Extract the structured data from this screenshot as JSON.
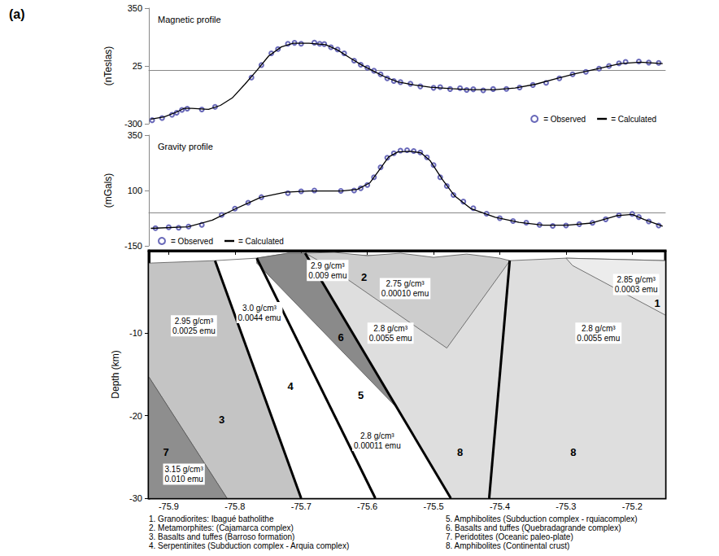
{
  "panel_label": "(a)",
  "chart_data": [
    {
      "type": "line",
      "title": "Magnetic profile",
      "y_label": "(nTeslas)",
      "xlim": [
        -75.93,
        -75.15
      ],
      "ylim": [
        -300,
        350
      ],
      "yticks": [
        -300,
        25,
        350
      ],
      "tick_labels": "y",
      "grid": false,
      "legend": "bottom-right",
      "series": [
        {
          "name": "= Observed",
          "type": "scatter",
          "marker": "emptyCircle",
          "color": "#4444a8",
          "x": [
            -75.925,
            -75.91,
            -75.895,
            -75.888,
            -75.88,
            -75.872,
            -75.85,
            -75.83,
            -75.775,
            -75.76,
            -75.745,
            -75.735,
            -75.72,
            -75.71,
            -75.7,
            -75.68,
            -75.672,
            -75.665,
            -75.655,
            -75.645,
            -75.635,
            -75.62,
            -75.61,
            -75.6,
            -75.59,
            -75.58,
            -75.57,
            -75.56,
            -75.55,
            -75.535,
            -75.52,
            -75.5,
            -75.49,
            -75.475,
            -75.46,
            -75.45,
            -75.44,
            -75.425,
            -75.41,
            -75.39,
            -75.37,
            -75.35,
            -75.33,
            -75.31,
            -75.29,
            -75.27,
            -75.25,
            -75.235,
            -75.22,
            -75.21,
            -75.19,
            -75.175,
            -75.16
          ],
          "values": [
            -280,
            -268,
            -250,
            -238,
            -222,
            -215,
            -220,
            -205,
            -40,
            30,
            96,
            120,
            150,
            155,
            150,
            156,
            150,
            148,
            130,
            118,
            96,
            55,
            32,
            15,
            -2,
            -22,
            -45,
            -60,
            -66,
            -75,
            -90,
            -98,
            -94,
            -105,
            -100,
            -110,
            -106,
            -112,
            -105,
            -104,
            -96,
            -82,
            -70,
            -45,
            -22,
            -8,
            10,
            25,
            40,
            48,
            50,
            44,
            42
          ]
        },
        {
          "name": "= Calculated",
          "type": "line",
          "line_style": "solid",
          "color": "#000000",
          "x": [
            -75.927,
            -75.907,
            -75.889,
            -75.877,
            -75.865,
            -75.84,
            -75.822,
            -75.804,
            -75.785,
            -75.767,
            -75.749,
            -75.73,
            -75.712,
            -75.688,
            -75.663,
            -75.645,
            -75.627,
            -75.608,
            -75.59,
            -75.572,
            -75.554,
            -75.529,
            -75.505,
            -75.474,
            -75.444,
            -75.407,
            -75.377,
            -75.346,
            -75.316,
            -75.285,
            -75.249,
            -75.218,
            -75.188,
            -75.154
          ],
          "values": [
            -274,
            -262,
            -236,
            -214,
            -214,
            -219,
            -197,
            -155,
            -78,
            -1,
            81,
            132,
            153,
            153,
            145,
            115,
            72,
            29,
            -5,
            -39,
            -65,
            -82,
            -95,
            -103,
            -108,
            -108,
            -99,
            -78,
            -48,
            -18,
            12,
            38,
            46,
            38
          ]
        }
      ]
    },
    {
      "type": "line",
      "title": "Gravity profile",
      "y_label": "(mGals)",
      "xlim": [
        -75.93,
        -75.15
      ],
      "ylim": [
        -150,
        350
      ],
      "yticks": [
        -150,
        100,
        350
      ],
      "tick_labels": "y",
      "grid": false,
      "legend": "bottom-left",
      "series": [
        {
          "name": "= Observed",
          "type": "scatter",
          "marker": "emptyCircle",
          "color": "#4444a8",
          "x": [
            -75.92,
            -75.9,
            -75.885,
            -75.87,
            -75.85,
            -75.82,
            -75.8,
            -75.78,
            -75.76,
            -75.72,
            -75.7,
            -75.68,
            -75.64,
            -75.62,
            -75.61,
            -75.6,
            -75.59,
            -75.58,
            -75.57,
            -75.56,
            -75.55,
            -75.54,
            -75.53,
            -75.52,
            -75.51,
            -75.5,
            -75.49,
            -75.48,
            -75.47,
            -75.455,
            -75.44,
            -75.42,
            -75.4,
            -75.38,
            -75.36,
            -75.34,
            -75.32,
            -75.3,
            -75.28,
            -75.26,
            -75.24,
            -75.22,
            -75.2,
            -75.19,
            -75.175,
            -75.16
          ],
          "values": [
            -70,
            -66,
            -68,
            -63,
            -55,
            -10,
            18,
            45,
            70,
            88,
            96,
            100,
            98,
            100,
            110,
            125,
            160,
            205,
            248,
            268,
            280,
            282,
            278,
            272,
            250,
            215,
            160,
            120,
            80,
            50,
            20,
            -5,
            -25,
            -38,
            -45,
            -55,
            -60,
            -58,
            -52,
            -46,
            -30,
            -12,
            -6,
            -20,
            -40,
            -58
          ]
        },
        {
          "name": "= Calculated",
          "type": "line",
          "line_style": "solid",
          "color": "#000000",
          "x": [
            -75.927,
            -75.871,
            -75.834,
            -75.798,
            -75.761,
            -75.724,
            -75.688,
            -75.639,
            -75.615,
            -75.596,
            -75.584,
            -75.568,
            -75.554,
            -75.535,
            -75.519,
            -75.505,
            -75.487,
            -75.468,
            -75.444,
            -75.407,
            -75.371,
            -75.334,
            -75.298,
            -75.261,
            -75.224,
            -75.2,
            -75.182,
            -75.154
          ],
          "values": [
            -71,
            -64,
            -34,
            19,
            69,
            92,
            98,
            98,
            105,
            135,
            184,
            251,
            274,
            277,
            270,
            234,
            151,
            75,
            19,
            -21,
            -44,
            -57,
            -57,
            -47,
            -14,
            -8,
            -31,
            -61
          ]
        }
      ]
    },
    {
      "type": "section",
      "y_label": "Depth (km)",
      "xlim": [
        -75.93,
        -75.15
      ],
      "xticks": [
        -75.9,
        -75.8,
        -75.7,
        -75.6,
        -75.5,
        -75.4,
        -75.3,
        -75.2
      ],
      "ylim": [
        -30,
        0
      ],
      "yticks": [
        -30,
        -20,
        -10
      ],
      "grid": false,
      "units": [
        {
          "number": "8",
          "density": "2.8 g/cm³",
          "susceptibility": "0.0055 emu",
          "color": "#dedede",
          "polygon": [
            [
              -75.694,
              -0.3
            ],
            [
              -75.385,
              -1.2
            ],
            [
              -75.416,
              -30
            ],
            [
              -75.474,
              -30
            ]
          ],
          "number_at": [
            -75.46,
            -24.4
          ],
          "props_at": [
            -75.565,
            -10
          ]
        },
        {
          "number": "8",
          "density": "2.8 g/cm³",
          "susceptibility": "0.0055 emu",
          "color": "#dedede",
          "polygon": [
            [
              -75.385,
              -1.2
            ],
            [
              -75.3,
              -0.9
            ],
            [
              -75.15,
              -1.2
            ],
            [
              -75.15,
              -30
            ],
            [
              -75.416,
              -30
            ]
          ],
          "number_at": [
            -75.289,
            -24.4
          ],
          "props_at": [
            -75.251,
            -10
          ]
        },
        {
          "number": "3",
          "density": "2.95 g/cm³",
          "susceptibility": "0.0025 emu",
          "color": "#c4c4c4",
          "polygon": [
            [
              -75.93,
              -1.5
            ],
            [
              -75.83,
              -1.2
            ],
            [
              -75.7,
              -30
            ],
            [
              -75.812,
              -30
            ],
            [
              -75.93,
              -15.3
            ]
          ],
          "number_at": [
            -75.82,
            -20.5
          ],
          "props_at": [
            -75.862,
            -9.1
          ]
        },
        {
          "number": "7",
          "density": "3.15 g/cm³",
          "susceptibility": "0.010 emu",
          "color": "#8e8e8e",
          "polygon": [
            [
              -75.93,
              -15.3
            ],
            [
              -75.812,
              -30
            ],
            [
              -75.93,
              -30
            ]
          ],
          "number_at": [
            -75.904,
            -24.4
          ],
          "props_at": [
            -75.877,
            -27.1
          ]
        },
        {
          "number": "4",
          "density": "3.0 g/cm³",
          "susceptibility": "0.0044 emu",
          "color": "#ffffff",
          "polygon": [
            [
              -75.83,
              -1.2
            ],
            [
              -75.767,
              -0.9
            ],
            [
              -75.588,
              -30
            ],
            [
              -75.7,
              -30
            ]
          ],
          "number_at": [
            -75.716,
            -16.4
          ],
          "props_at": [
            -75.763,
            -7.5
          ]
        },
        {
          "number": "5",
          "density": "2.8 g/cm³",
          "susceptibility": "0.00011 emu",
          "color": "#ffffff",
          "polygon": [
            [
              -75.767,
              -0.9
            ],
            [
              -75.72,
              -0.3
            ],
            [
              -75.694,
              -0.3
            ],
            [
              -75.474,
              -30
            ],
            [
              -75.588,
              -30
            ]
          ],
          "number_at": [
            -75.61,
            -17.5
          ],
          "props_at": [
            -75.585,
            -23
          ]
        },
        {
          "number": "6",
          "density": "2.9 g/cm³",
          "susceptibility": "0.009 emu",
          "color": "#8a8a8a",
          "polygon": [
            [
              -75.767,
              -1.5
            ],
            [
              -75.767,
              -0.9
            ],
            [
              -75.72,
              -0.3
            ],
            [
              -75.694,
              -0.3
            ],
            [
              -75.556,
              -19
            ]
          ],
          "number_at": [
            -75.64,
            -10.5
          ],
          "props_at": [
            -75.66,
            -2.4
          ]
        },
        {
          "number": "2",
          "density": "2.75 g/cm³",
          "susceptibility": "0.00010 emu",
          "color": "#cdcdcd",
          "polygon": [
            [
              -75.694,
              -0.3
            ],
            [
              -75.65,
              -0.2
            ],
            [
              -75.6,
              -0.6
            ],
            [
              -75.55,
              -0.3
            ],
            [
              -75.5,
              -0.8
            ],
            [
              -75.45,
              -0.4
            ],
            [
              -75.4,
              -0.9
            ],
            [
              -75.385,
              -1.2
            ],
            [
              -75.39,
              -1.8
            ],
            [
              -75.48,
              -11.8
            ],
            [
              -75.66,
              -1.8
            ]
          ],
          "number_at": [
            -75.605,
            -3.2
          ],
          "props_at": [
            -75.543,
            -4.6
          ]
        },
        {
          "number": "1",
          "density": "2.85 g/cm³",
          "susceptibility": "0.0003 emu",
          "color": "#ececec",
          "polygon": [
            [
              -75.3,
              -0.9
            ],
            [
              -75.15,
              -1.2
            ],
            [
              -75.15,
              -7.8
            ],
            [
              -75.29,
              -1.8
            ]
          ],
          "number_at": [
            -75.162,
            -6.4
          ],
          "props_at": [
            -75.194,
            -4.1
          ]
        }
      ],
      "faults": [
        [
          [
            -75.83,
            -1.2
          ],
          [
            -75.7,
            -30
          ]
        ],
        [
          [
            -75.767,
            -0.9
          ],
          [
            -75.588,
            -30
          ]
        ],
        [
          [
            -75.694,
            -0.3
          ],
          [
            -75.474,
            -30
          ]
        ],
        [
          [
            -75.385,
            -1.2
          ],
          [
            -75.416,
            -30
          ]
        ]
      ],
      "legend_items": [
        "1. Granodiorites: Ibagué batholithe",
        "2. Metamorphites: (Cajamarca complex)",
        "3. Basalts and tuffes (Barroso formation)",
        "4. Serpentinites (Subduction complex - Arquia complex)",
        "5. Amphibolites (Subduction complex - rquiacomplex)",
        "6. Basalts and tuffes (Quebradagrande complex)",
        "7. Peridotites (Oceanic paleo-plate)",
        "8. Amphibolites (Continental crust)"
      ]
    }
  ]
}
